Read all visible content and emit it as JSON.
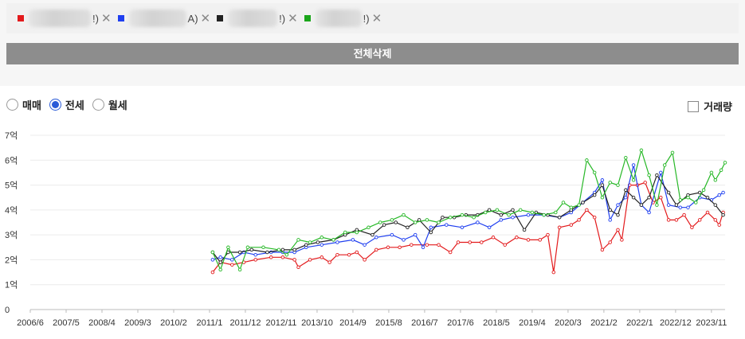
{
  "legend": [
    {
      "color": "#e31a1c",
      "suffix": "!)",
      "blur_w": 78
    },
    {
      "color": "#1f3ff0",
      "suffix": "A)",
      "blur_w": 72
    },
    {
      "color": "#222222",
      "suffix": "!)",
      "blur_w": 62
    },
    {
      "color": "#1aa51a",
      "suffix": "!)",
      "blur_w": 58
    }
  ],
  "legend_remove_icon": "close-icon",
  "clear_button": "전체삭제",
  "radios": [
    {
      "label": "매매",
      "selected": false
    },
    {
      "label": "전세",
      "selected": true
    },
    {
      "label": "월세",
      "selected": false
    }
  ],
  "volume_checkbox": {
    "label": "거래량",
    "checked": false
  },
  "chart_data": {
    "type": "line",
    "ylim": [
      0,
      7
    ],
    "y_ticks": [
      "0",
      "1억",
      "2억",
      "3억",
      "4억",
      "5억",
      "6억",
      "7억"
    ],
    "x_ticks": [
      "2006/6",
      "2007/5",
      "2008/4",
      "2009/3",
      "2010/2",
      "2011/1",
      "2011/12",
      "2012/11",
      "2013/10",
      "2014/9",
      "2015/8",
      "2016/7",
      "2017/6",
      "2018/5",
      "2019/4",
      "2020/3",
      "2021/2",
      "2022/1",
      "2022/12",
      "2023/11"
    ],
    "x_range": [
      2006.42,
      2024.25
    ],
    "grid": true,
    "series": [
      {
        "color": "#e31a1c",
        "points": [
          [
            2011.1,
            1.5
          ],
          [
            2011.3,
            1.9
          ],
          [
            2011.6,
            1.8
          ],
          [
            2011.9,
            1.9
          ],
          [
            2012.2,
            2.0
          ],
          [
            2012.6,
            2.1
          ],
          [
            2012.9,
            2.1
          ],
          [
            2013.2,
            2.0
          ],
          [
            2013.3,
            1.7
          ],
          [
            2013.6,
            2.0
          ],
          [
            2013.9,
            2.1
          ],
          [
            2014.1,
            1.9
          ],
          [
            2014.3,
            2.2
          ],
          [
            2014.6,
            2.2
          ],
          [
            2014.8,
            2.3
          ],
          [
            2015.0,
            2.0
          ],
          [
            2015.3,
            2.4
          ],
          [
            2015.6,
            2.5
          ],
          [
            2015.9,
            2.5
          ],
          [
            2016.2,
            2.6
          ],
          [
            2016.6,
            2.6
          ],
          [
            2016.9,
            2.6
          ],
          [
            2017.2,
            2.3
          ],
          [
            2017.4,
            2.7
          ],
          [
            2017.7,
            2.7
          ],
          [
            2018.0,
            2.7
          ],
          [
            2018.3,
            2.9
          ],
          [
            2018.6,
            2.6
          ],
          [
            2018.9,
            2.9
          ],
          [
            2019.2,
            2.8
          ],
          [
            2019.5,
            2.8
          ],
          [
            2019.7,
            3.0
          ],
          [
            2019.85,
            1.5
          ],
          [
            2020.0,
            3.3
          ],
          [
            2020.3,
            3.4
          ],
          [
            2020.5,
            3.6
          ],
          [
            2020.7,
            4.0
          ],
          [
            2020.9,
            3.7
          ],
          [
            2021.1,
            2.4
          ],
          [
            2021.3,
            2.7
          ],
          [
            2021.5,
            3.2
          ],
          [
            2021.6,
            2.8
          ],
          [
            2021.8,
            5.0
          ],
          [
            2022.0,
            5.0
          ],
          [
            2022.2,
            5.1
          ],
          [
            2022.4,
            4.3
          ],
          [
            2022.6,
            4.5
          ],
          [
            2022.8,
            3.6
          ],
          [
            2023.0,
            3.6
          ],
          [
            2023.2,
            3.8
          ],
          [
            2023.4,
            3.3
          ],
          [
            2023.6,
            3.6
          ],
          [
            2023.8,
            3.9
          ],
          [
            2024.0,
            3.6
          ],
          [
            2024.1,
            3.4
          ],
          [
            2024.2,
            3.9
          ]
        ]
      },
      {
        "color": "#1f3ff0",
        "points": [
          [
            2011.1,
            2.0
          ],
          [
            2011.3,
            2.1
          ],
          [
            2011.6,
            2.0
          ],
          [
            2011.9,
            2.3
          ],
          [
            2012.2,
            2.2
          ],
          [
            2012.6,
            2.3
          ],
          [
            2012.9,
            2.3
          ],
          [
            2013.2,
            2.3
          ],
          [
            2013.5,
            2.5
          ],
          [
            2013.9,
            2.6
          ],
          [
            2014.3,
            2.7
          ],
          [
            2014.7,
            2.8
          ],
          [
            2015.0,
            2.6
          ],
          [
            2015.3,
            2.9
          ],
          [
            2015.7,
            3.0
          ],
          [
            2016.0,
            2.8
          ],
          [
            2016.3,
            3.0
          ],
          [
            2016.5,
            2.5
          ],
          [
            2016.7,
            3.3
          ],
          [
            2017.1,
            3.4
          ],
          [
            2017.5,
            3.3
          ],
          [
            2017.9,
            3.5
          ],
          [
            2018.2,
            3.3
          ],
          [
            2018.5,
            3.6
          ],
          [
            2018.8,
            3.7
          ],
          [
            2019.2,
            3.8
          ],
          [
            2019.6,
            3.8
          ],
          [
            2020.0,
            3.7
          ],
          [
            2020.3,
            3.9
          ],
          [
            2020.6,
            4.3
          ],
          [
            2020.9,
            4.7
          ],
          [
            2021.1,
            5.2
          ],
          [
            2021.3,
            3.6
          ],
          [
            2021.5,
            4.2
          ],
          [
            2021.7,
            4.5
          ],
          [
            2021.9,
            5.8
          ],
          [
            2022.1,
            4.2
          ],
          [
            2022.3,
            3.9
          ],
          [
            2022.6,
            5.5
          ],
          [
            2022.8,
            4.2
          ],
          [
            2023.1,
            4.1
          ],
          [
            2023.3,
            4.1
          ],
          [
            2023.6,
            4.5
          ],
          [
            2023.9,
            4.4
          ],
          [
            2024.1,
            4.6
          ],
          [
            2024.2,
            4.7
          ]
        ]
      },
      {
        "color": "#222222",
        "points": [
          [
            2011.1,
            2.3
          ],
          [
            2011.3,
            1.9
          ],
          [
            2011.5,
            2.3
          ],
          [
            2011.8,
            2.3
          ],
          [
            2012.1,
            2.4
          ],
          [
            2012.5,
            2.3
          ],
          [
            2012.9,
            2.4
          ],
          [
            2013.2,
            2.4
          ],
          [
            2013.5,
            2.6
          ],
          [
            2013.8,
            2.7
          ],
          [
            2014.2,
            2.8
          ],
          [
            2014.5,
            3.0
          ],
          [
            2014.8,
            3.2
          ],
          [
            2015.2,
            3.0
          ],
          [
            2015.5,
            3.4
          ],
          [
            2015.8,
            3.5
          ],
          [
            2016.1,
            3.3
          ],
          [
            2016.4,
            3.6
          ],
          [
            2016.7,
            3.1
          ],
          [
            2017.0,
            3.7
          ],
          [
            2017.3,
            3.7
          ],
          [
            2017.6,
            3.8
          ],
          [
            2017.9,
            3.8
          ],
          [
            2018.2,
            4.0
          ],
          [
            2018.5,
            3.8
          ],
          [
            2018.8,
            4.0
          ],
          [
            2019.1,
            3.2
          ],
          [
            2019.4,
            3.9
          ],
          [
            2019.7,
            3.8
          ],
          [
            2020.0,
            3.7
          ],
          [
            2020.3,
            4.0
          ],
          [
            2020.6,
            4.3
          ],
          [
            2020.9,
            4.6
          ],
          [
            2021.1,
            5.0
          ],
          [
            2021.3,
            4.0
          ],
          [
            2021.5,
            3.8
          ],
          [
            2021.7,
            4.8
          ],
          [
            2021.9,
            4.5
          ],
          [
            2022.1,
            4.2
          ],
          [
            2022.3,
            4.5
          ],
          [
            2022.5,
            5.4
          ],
          [
            2022.8,
            4.7
          ],
          [
            2023.0,
            4.2
          ],
          [
            2023.3,
            4.6
          ],
          [
            2023.6,
            4.7
          ],
          [
            2023.8,
            4.5
          ],
          [
            2024.0,
            4.2
          ],
          [
            2024.2,
            3.8
          ]
        ]
      },
      {
        "color": "#27b827",
        "points": [
          [
            2011.1,
            2.3
          ],
          [
            2011.3,
            1.6
          ],
          [
            2011.5,
            2.5
          ],
          [
            2011.8,
            1.6
          ],
          [
            2012.0,
            2.5
          ],
          [
            2012.4,
            2.5
          ],
          [
            2012.8,
            2.4
          ],
          [
            2013.0,
            2.2
          ],
          [
            2013.3,
            2.8
          ],
          [
            2013.6,
            2.7
          ],
          [
            2013.9,
            2.9
          ],
          [
            2014.2,
            2.8
          ],
          [
            2014.5,
            3.1
          ],
          [
            2014.8,
            3.1
          ],
          [
            2015.1,
            3.3
          ],
          [
            2015.4,
            3.5
          ],
          [
            2015.7,
            3.6
          ],
          [
            2016.0,
            3.8
          ],
          [
            2016.3,
            3.5
          ],
          [
            2016.6,
            3.6
          ],
          [
            2016.9,
            3.5
          ],
          [
            2017.2,
            3.7
          ],
          [
            2017.5,
            3.8
          ],
          [
            2017.8,
            3.7
          ],
          [
            2018.1,
            3.9
          ],
          [
            2018.4,
            4.0
          ],
          [
            2018.7,
            3.8
          ],
          [
            2019.0,
            4.0
          ],
          [
            2019.3,
            3.9
          ],
          [
            2019.6,
            3.8
          ],
          [
            2019.9,
            3.9
          ],
          [
            2020.1,
            4.3
          ],
          [
            2020.3,
            4.1
          ],
          [
            2020.5,
            4.2
          ],
          [
            2020.7,
            6.0
          ],
          [
            2020.9,
            5.5
          ],
          [
            2021.1,
            4.5
          ],
          [
            2021.3,
            5.1
          ],
          [
            2021.5,
            5.0
          ],
          [
            2021.7,
            6.1
          ],
          [
            2021.9,
            5.2
          ],
          [
            2022.1,
            6.4
          ],
          [
            2022.3,
            5.4
          ],
          [
            2022.5,
            4.2
          ],
          [
            2022.7,
            5.8
          ],
          [
            2022.9,
            6.3
          ],
          [
            2023.1,
            4.4
          ],
          [
            2023.3,
            4.5
          ],
          [
            2023.5,
            4.3
          ],
          [
            2023.7,
            4.8
          ],
          [
            2023.9,
            5.5
          ],
          [
            2024.0,
            5.2
          ],
          [
            2024.15,
            5.6
          ],
          [
            2024.25,
            5.9
          ]
        ]
      }
    ]
  }
}
